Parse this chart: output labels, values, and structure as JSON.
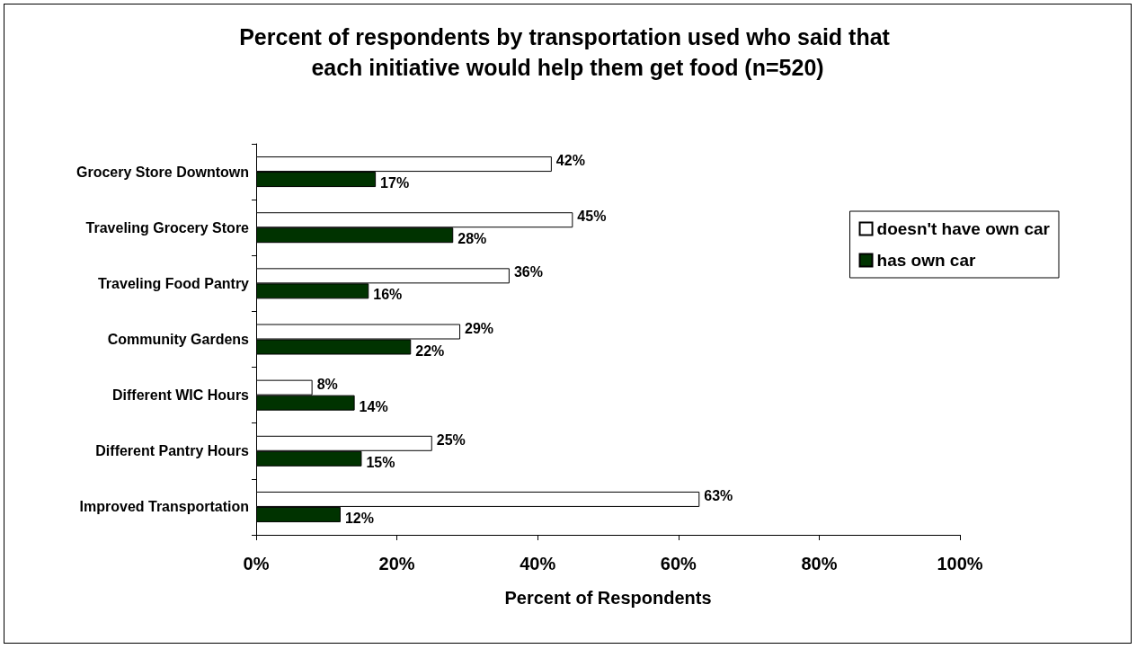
{
  "chart_data": {
    "type": "bar",
    "orientation": "horizontal",
    "title": "Percent of respondents by transportation used who said that each initiative would help them get food (n=520)",
    "xlabel": "Percent of Respondents",
    "categories": [
      "Grocery Store Downtown",
      "Traveling Grocery Store",
      "Traveling Food Pantry",
      "Community Gardens",
      "Different WIC Hours",
      "Different Pantry Hours",
      "Improved Transportation"
    ],
    "series": [
      {
        "name": "doesn't have own car",
        "color": "#ffffff",
        "values": [
          42,
          45,
          36,
          29,
          8,
          25,
          63
        ],
        "value_labels": [
          "42%",
          "45%",
          "36%",
          "29%",
          "8%",
          "25%",
          "63%"
        ]
      },
      {
        "name": "has own car",
        "color": "#003300",
        "values": [
          17,
          28,
          16,
          22,
          14,
          15,
          12
        ],
        "value_labels": [
          "17%",
          "28%",
          "16%",
          "22%",
          "14%",
          "15%",
          "12%"
        ]
      }
    ],
    "xlim": [
      0,
      100
    ],
    "xticks": [
      {
        "value": 0,
        "label": "0%"
      },
      {
        "value": 20,
        "label": "20%"
      },
      {
        "value": 40,
        "label": "40%"
      },
      {
        "value": 60,
        "label": "60%"
      },
      {
        "value": 80,
        "label": "80%"
      },
      {
        "value": 100,
        "label": "100%"
      }
    ],
    "grid": false,
    "legend": "right"
  }
}
